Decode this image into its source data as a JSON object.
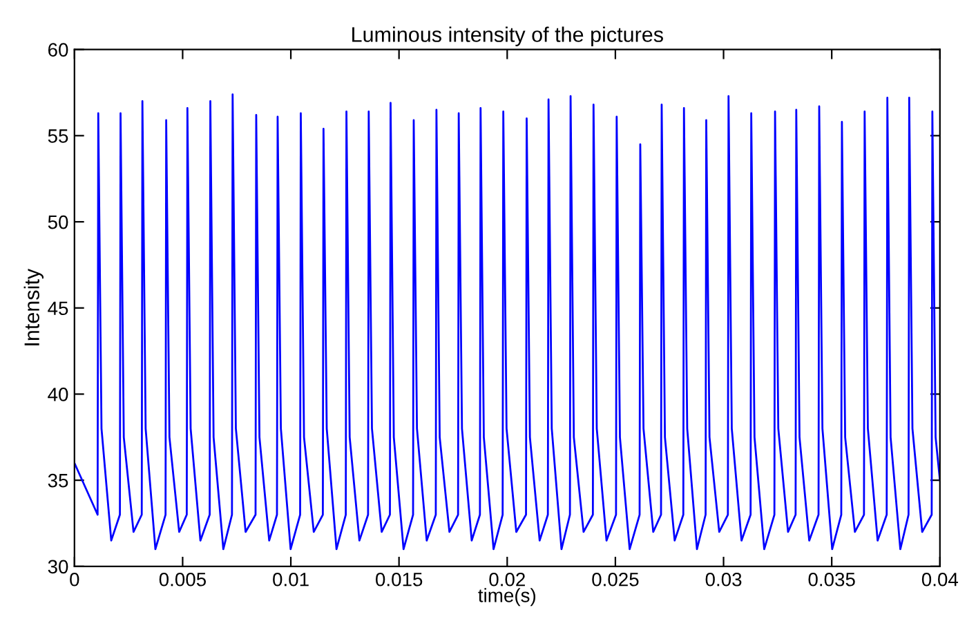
{
  "chart_data": {
    "type": "line",
    "title": "Luminous intensity of the pictures",
    "xlabel": "time(s)",
    "ylabel": "Intensity",
    "xlim": [
      0,
      0.04
    ],
    "ylim": [
      30,
      60
    ],
    "xticks": [
      0,
      0.005,
      0.01,
      0.015,
      0.02,
      0.025,
      0.03,
      0.035,
      0.04
    ],
    "yticks": [
      30,
      35,
      40,
      45,
      50,
      55,
      60
    ],
    "grid": false,
    "marker": "none",
    "line_style": "solid",
    "series": [
      {
        "color": "#0000ff",
        "x": [
          0,
          0.00107,
          0.0011,
          0.00125,
          0.0017,
          0.0021,
          0.00213,
          0.00228,
          0.00273,
          0.00311,
          0.00314,
          0.00329,
          0.00374,
          0.00421,
          0.00424,
          0.00439,
          0.00484,
          0.00519,
          0.00522,
          0.00537,
          0.00582,
          0.00625,
          0.00628,
          0.00643,
          0.00688,
          0.00728,
          0.00731,
          0.00746,
          0.00791,
          0.00837,
          0.0084,
          0.00855,
          0.009,
          0.00936,
          0.00939,
          0.00954,
          0.00999,
          0.01043,
          0.01046,
          0.01061,
          0.01106,
          0.01148,
          0.01151,
          0.01166,
          0.01211,
          0.01254,
          0.01257,
          0.01272,
          0.01317,
          0.01357,
          0.0136,
          0.01375,
          0.0142,
          0.01458,
          0.01461,
          0.01476,
          0.01521,
          0.01565,
          0.01568,
          0.01583,
          0.01628,
          0.0167,
          0.01673,
          0.01688,
          0.01733,
          0.01773,
          0.01776,
          0.01791,
          0.01836,
          0.01874,
          0.01877,
          0.01892,
          0.01937,
          0.01979,
          0.01982,
          0.01997,
          0.02042,
          0.02087,
          0.0209,
          0.02105,
          0.0215,
          0.02188,
          0.02191,
          0.02206,
          0.02251,
          0.0229,
          0.02293,
          0.02308,
          0.02353,
          0.02396,
          0.02399,
          0.02414,
          0.02459,
          0.02503,
          0.02506,
          0.02521,
          0.02566,
          0.02612,
          0.02615,
          0.0263,
          0.02675,
          0.02711,
          0.02714,
          0.02729,
          0.02774,
          0.02814,
          0.02817,
          0.02832,
          0.02877,
          0.02917,
          0.0292,
          0.02935,
          0.0298,
          0.0302,
          0.03023,
          0.03038,
          0.03083,
          0.03125,
          0.03128,
          0.03143,
          0.03188,
          0.03235,
          0.03238,
          0.03253,
          0.03298,
          0.03333,
          0.03336,
          0.03351,
          0.03396,
          0.03439,
          0.03442,
          0.03457,
          0.03502,
          0.03544,
          0.03547,
          0.03562,
          0.03607,
          0.03649,
          0.03652,
          0.03667,
          0.03712,
          0.03754,
          0.03757,
          0.03772,
          0.03817,
          0.03855,
          0.03858,
          0.03873,
          0.03918,
          0.03962,
          0.03965,
          0.0398,
          0.04
        ],
        "values": [
          36,
          33,
          56.3,
          38,
          31.5,
          33,
          56.3,
          37.5,
          32,
          33,
          57.0,
          38,
          31,
          33,
          55.9,
          37.5,
          32,
          33,
          56.6,
          38,
          31.5,
          33,
          57.0,
          37.5,
          31,
          33,
          57.4,
          38,
          32,
          33,
          56.2,
          37.5,
          31.5,
          33,
          56.1,
          38,
          31,
          33,
          56.3,
          37.5,
          32,
          33,
          55.4,
          38,
          31,
          33,
          56.4,
          37.5,
          31.5,
          33,
          56.4,
          38,
          32,
          33,
          56.9,
          37.5,
          31,
          33,
          55.9,
          38,
          31.5,
          33,
          56.5,
          37.5,
          32,
          33,
          56.3,
          38,
          31.5,
          33,
          56.6,
          37.5,
          31,
          33,
          56.4,
          38,
          32,
          33,
          56.0,
          37.5,
          31.5,
          33,
          57.1,
          38,
          31,
          33,
          57.3,
          37.5,
          32,
          33,
          56.8,
          38,
          31.5,
          33,
          56.1,
          37.5,
          31,
          33,
          54.5,
          38,
          32,
          33,
          56.8,
          37.5,
          31.5,
          33,
          56.6,
          38,
          31,
          33,
          55.9,
          37.5,
          32,
          33,
          57.3,
          38,
          31.5,
          33,
          56.3,
          37.5,
          31,
          33,
          56.4,
          38,
          32,
          33,
          56.5,
          37.5,
          31.5,
          33,
          56.7,
          38,
          31,
          33,
          55.8,
          37.5,
          32,
          33,
          56.4,
          38,
          31.5,
          33,
          57.2,
          37.5,
          31,
          33,
          57.2,
          38,
          32,
          33,
          56.4,
          37.5,
          35
        ]
      }
    ]
  }
}
